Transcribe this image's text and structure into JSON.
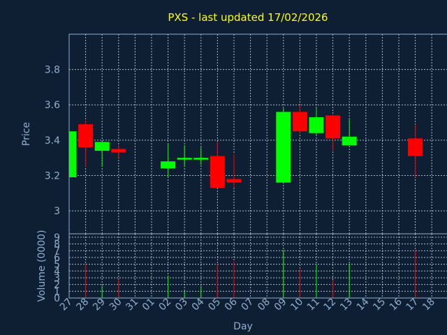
{
  "chart_data": {
    "type": "candlestick",
    "title": "PXS - last updated 17/02/2026",
    "xlabel": "Day",
    "ylabel": "Price",
    "volume_label": "Volume (0000)",
    "colors": {
      "background": "#0f1f33",
      "up": "#00ff00",
      "down": "#ff0000",
      "title": "#ffff00",
      "axis": "#8fb0d0",
      "grid": "#c9d4df"
    },
    "x_ticks": [
      "27",
      "28",
      "29",
      "30",
      "31",
      "01",
      "02",
      "03",
      "04",
      "05",
      "06",
      "07",
      "08",
      "09",
      "10",
      "11",
      "12",
      "13",
      "14",
      "15",
      "16",
      "17",
      "18"
    ],
    "price_ylim": [
      2.87,
      4.0
    ],
    "price_ticks": [
      {
        "value": 3.0,
        "label": "3"
      },
      {
        "value": 3.2,
        "label": "3.2"
      },
      {
        "value": 3.4,
        "label": "3.4"
      },
      {
        "value": 3.6,
        "label": "3.6"
      },
      {
        "value": 3.8,
        "label": "3.8"
      }
    ],
    "volume_ylim": [
      0,
      9.5
    ],
    "volume_ticks": [
      {
        "value": 0,
        "label": "0"
      },
      {
        "value": 1,
        "label": "1"
      },
      {
        "value": 2,
        "label": "2"
      },
      {
        "value": 3,
        "label": "3"
      },
      {
        "value": 4,
        "label": "4"
      },
      {
        "value": 5,
        "label": "5"
      },
      {
        "value": 6,
        "label": "6"
      },
      {
        "value": 7,
        "label": "7"
      },
      {
        "value": 8,
        "label": "8"
      },
      {
        "value": 9,
        "label": "9"
      }
    ],
    "candles": [
      {
        "day": "27",
        "open": 3.19,
        "close": 3.45,
        "high": 3.45,
        "low": 3.19
      },
      {
        "day": "28",
        "open": 3.49,
        "close": 3.36,
        "high": 3.51,
        "low": 3.25
      },
      {
        "day": "29",
        "open": 3.34,
        "close": 3.39,
        "high": 3.39,
        "low": 3.25
      },
      {
        "day": "30",
        "open": 3.35,
        "close": 3.33,
        "high": 3.37,
        "low": 3.3
      },
      {
        "day": "02",
        "open": 3.24,
        "close": 3.28,
        "high": 3.38,
        "low": 3.19
      },
      {
        "day": "03",
        "open": 3.29,
        "close": 3.3,
        "high": 3.37,
        "low": 3.25
      },
      {
        "day": "04",
        "open": 3.29,
        "close": 3.3,
        "high": 3.36,
        "low": 3.26
      },
      {
        "day": "05",
        "open": 3.31,
        "close": 3.13,
        "high": 3.39,
        "low": 3.13
      },
      {
        "day": "06",
        "open": 3.18,
        "close": 3.16,
        "high": 3.32,
        "low": 3.13
      },
      {
        "day": "09",
        "open": 3.16,
        "close": 3.56,
        "high": 3.58,
        "low": 3.16
      },
      {
        "day": "10",
        "open": 3.56,
        "close": 3.45,
        "high": 3.6,
        "low": 3.44
      },
      {
        "day": "11",
        "open": 3.44,
        "close": 3.53,
        "high": 3.58,
        "low": 3.43
      },
      {
        "day": "12",
        "open": 3.54,
        "close": 3.41,
        "high": 3.54,
        "low": 3.34
      },
      {
        "day": "13",
        "open": 3.37,
        "close": 3.42,
        "high": 3.52,
        "low": 3.37
      },
      {
        "day": "17",
        "open": 3.41,
        "close": 3.31,
        "high": 3.49,
        "low": 3.19
      }
    ],
    "volumes": [
      {
        "day": "28",
        "value": 5.0,
        "color": "down"
      },
      {
        "day": "29",
        "value": 1.8,
        "color": "up"
      },
      {
        "day": "30",
        "value": 2.8,
        "color": "down"
      },
      {
        "day": "02",
        "value": 3.3,
        "color": "up"
      },
      {
        "day": "03",
        "value": 1.0,
        "color": "up"
      },
      {
        "day": "04",
        "value": 1.8,
        "color": "up"
      },
      {
        "day": "05",
        "value": 5.0,
        "color": "down"
      },
      {
        "day": "06",
        "value": 5.4,
        "color": "down"
      },
      {
        "day": "09",
        "value": 7.1,
        "color": "up"
      },
      {
        "day": "10",
        "value": 4.4,
        "color": "down"
      },
      {
        "day": "11",
        "value": 5.0,
        "color": "up"
      },
      {
        "day": "12",
        "value": 2.7,
        "color": "down"
      },
      {
        "day": "13",
        "value": 5.1,
        "color": "up"
      },
      {
        "day": "17",
        "value": 7.1,
        "color": "down"
      }
    ]
  }
}
